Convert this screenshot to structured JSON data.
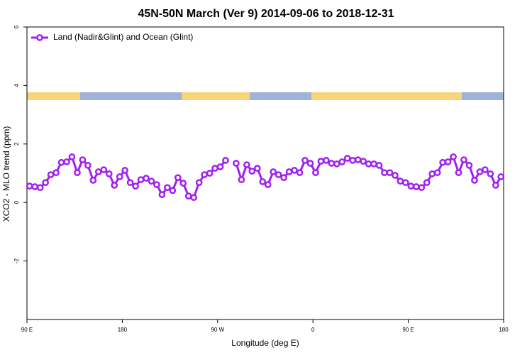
{
  "chart_data": {
    "type": "line",
    "title": "45N-50N March (Ver 9)   2014-09-06 to 2018-12-31",
    "xlabel": "Longitude (deg E)",
    "ylabel": "XCO2 - MLO trend (ppm)",
    "xlim": [
      90,
      540
    ],
    "ylim": [
      -4,
      6
    ],
    "xticks": [
      {
        "value": 90,
        "label": "90 E"
      },
      180,
      {
        "value": 270,
        "label": "90 W"
      },
      {
        "value": 360,
        "label": "0"
      },
      {
        "value": 450,
        "label": "90 E"
      },
      {
        "value": 540,
        "label": "180"
      }
    ],
    "yticks": [
      -2,
      0,
      2,
      4,
      6
    ],
    "legend": "upper left",
    "x": [
      92.5,
      97.5,
      102.5,
      107.5,
      112.5,
      117.5,
      122.5,
      127.5,
      132.5,
      137.5,
      142.5,
      147.5,
      152.5,
      157.5,
      162.5,
      167.5,
      172.5,
      177.5,
      182.5,
      187.5,
      192.5,
      197.5,
      202.5,
      207.5,
      212.5,
      217.5,
      222.5,
      227.5,
      232.5,
      237.5,
      242.5,
      247.5,
      252.5,
      257.5,
      262.5,
      267.5,
      272.5,
      277.5,
      282.5,
      287.5,
      292.5,
      297.5,
      302.5,
      307.5,
      312.5,
      317.5,
      322.5,
      327.5,
      332.5,
      337.5,
      342.5,
      347.5,
      352.5,
      357.5,
      362.5,
      367.5,
      372.5,
      377.5,
      382.5,
      387.5,
      392.5,
      397.5,
      402.5,
      407.5,
      412.5,
      417.5,
      422.5,
      427.5,
      432.5,
      437.5,
      442.5,
      447.5,
      452.5,
      457.5,
      462.5,
      467.5,
      472.5,
      477.5,
      482.5,
      487.5,
      492.5,
      497.5,
      502.5,
      507.5,
      512.5,
      517.5,
      522.5,
      527.5,
      532.5,
      537.5
    ],
    "series": [
      {
        "name": "Land (Nadir&Glint) and Ocean (Glint)",
        "color": "#a020f0",
        "values": [
          0.56,
          0.54,
          0.51,
          0.68,
          0.95,
          1.02,
          1.37,
          1.39,
          1.56,
          1.02,
          1.46,
          1.27,
          0.76,
          1.05,
          1.12,
          0.98,
          0.59,
          0.88,
          1.1,
          0.68,
          0.56,
          0.78,
          0.83,
          0.73,
          0.61,
          0.27,
          0.51,
          0.41,
          0.85,
          0.66,
          0.22,
          0.17,
          0.68,
          0.95,
          1.0,
          1.17,
          1.22,
          1.44,
          null,
          1.34,
          0.78,
          1.29,
          1.07,
          1.17,
          0.71,
          0.61,
          1.05,
          0.95,
          0.85,
          1.05,
          1.1,
          1.02,
          1.44,
          1.34,
          1.02,
          1.41,
          1.44,
          1.34,
          1.32,
          1.39,
          1.51,
          1.44,
          1.46,
          1.41,
          1.32,
          1.32,
          1.27,
          1.02,
          1.02,
          0.93,
          0.73,
          0.68,
          0.56,
          0.54,
          0.51,
          0.68,
          0.98,
          1.02,
          1.37,
          1.39,
          1.56,
          1.02,
          1.46,
          1.27,
          0.76,
          1.05,
          1.12,
          0.98,
          0.59,
          0.88
        ]
      }
    ]
  }
}
